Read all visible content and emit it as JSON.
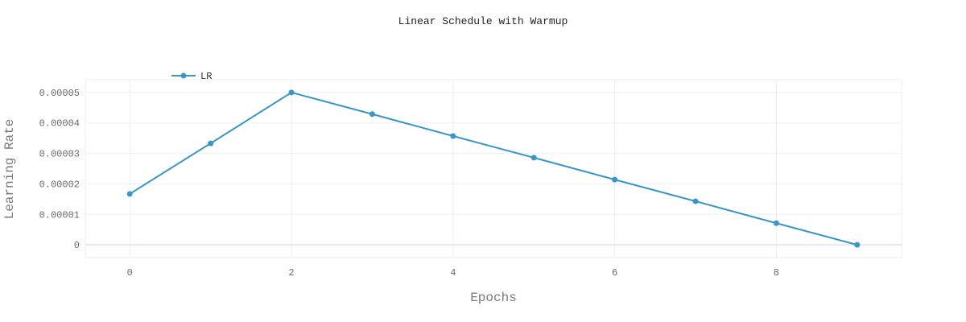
{
  "chart_data": {
    "type": "line",
    "title": "Linear Schedule with Warmup",
    "xlabel": "Epochs",
    "ylabel": "Learning Rate",
    "x": [
      0,
      1,
      2,
      3,
      4,
      5,
      6,
      7,
      8,
      9
    ],
    "series": [
      {
        "name": "LR",
        "values": [
          1.67e-05,
          3.33e-05,
          5e-05,
          4.29e-05,
          3.57e-05,
          2.86e-05,
          2.14e-05,
          1.43e-05,
          7.1e-06,
          0
        ]
      }
    ],
    "xticks": [
      0,
      2,
      4,
      6,
      8
    ],
    "xtick_labels": [
      "0",
      "2",
      "4",
      "6",
      "8"
    ],
    "yticks": [
      0,
      1e-05,
      2e-05,
      3e-05,
      4e-05,
      5e-05
    ],
    "ytick_labels": [
      "0",
      "0.00001",
      "0.00002",
      "0.00003",
      "0.00004",
      "0.00005"
    ],
    "xlim": [
      -0.55,
      9.55
    ],
    "ylim": [
      -4.2e-06,
      5.42e-05
    ],
    "grid": true,
    "legend_position": "top-left",
    "colors": {
      "series": "#3a96c9",
      "grid": "#eeeef6",
      "zeroline": "#e6e6f2"
    }
  }
}
